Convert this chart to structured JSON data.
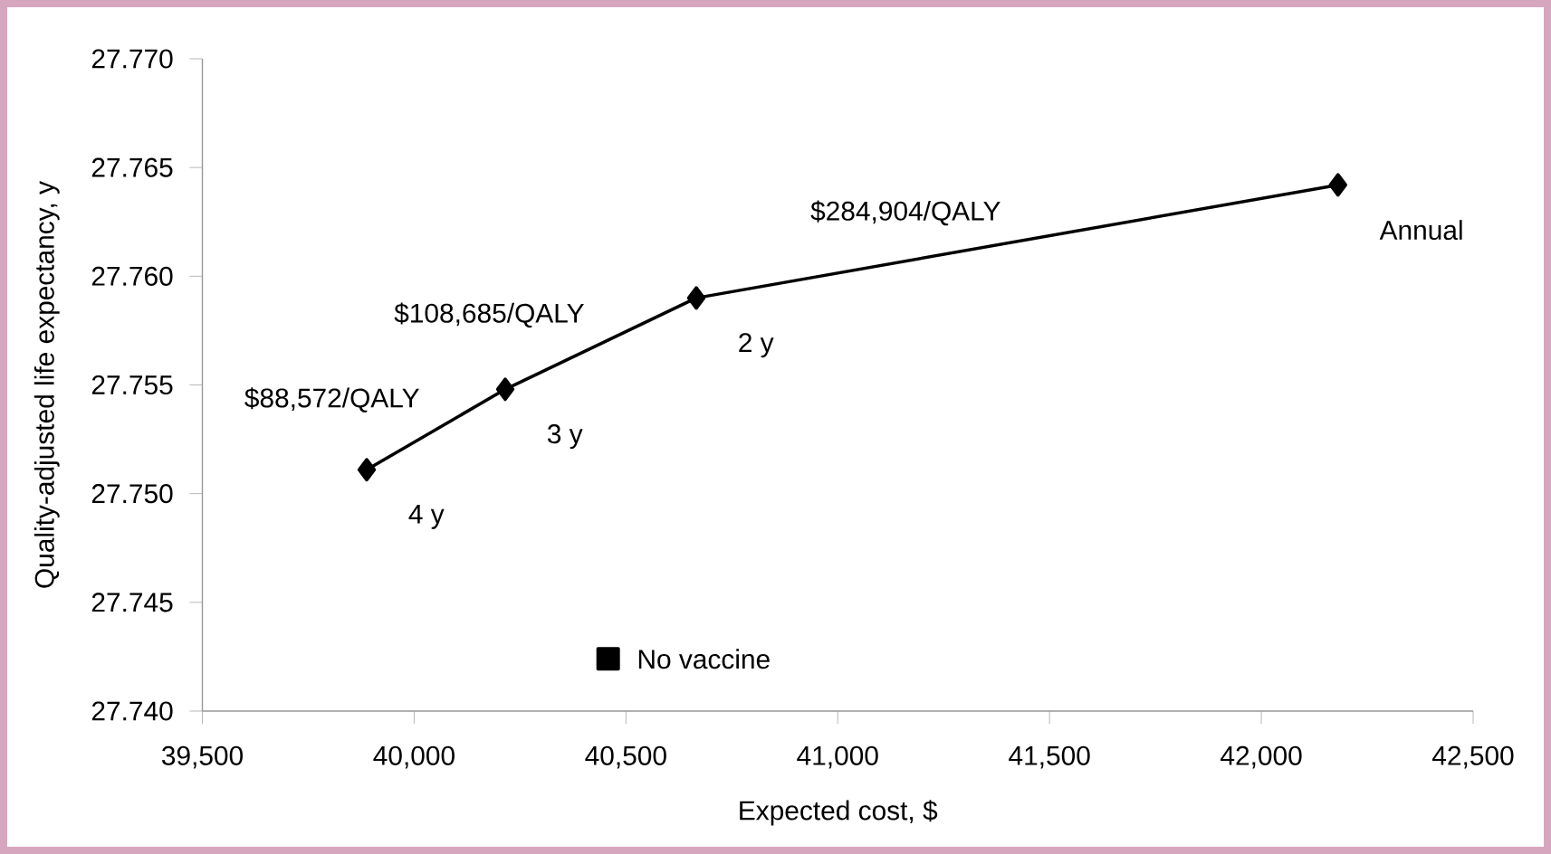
{
  "chart_data": {
    "type": "line",
    "xlabel": "Expected cost, $",
    "ylabel": "Quality-adjusted life expectancy, y",
    "xlim": [
      39500,
      42500
    ],
    "xticks": [
      {
        "value": 39500,
        "label": "39,500"
      },
      {
        "value": 40000,
        "label": "40,000"
      },
      {
        "value": 40500,
        "label": "40,500"
      },
      {
        "value": 41000,
        "label": "41,000"
      },
      {
        "value": 41500,
        "label": "41,500"
      },
      {
        "value": 42000,
        "label": "42,000"
      },
      {
        "value": 42500,
        "label": "42,500"
      }
    ],
    "ylim": [
      27.74,
      27.77
    ],
    "yticks": [
      {
        "value": 27.74,
        "label": "27.740"
      },
      {
        "value": 27.745,
        "label": "27.745"
      },
      {
        "value": 27.75,
        "label": "27.750"
      },
      {
        "value": 27.755,
        "label": "27.755"
      },
      {
        "value": 27.76,
        "label": "27.760"
      },
      {
        "value": 27.765,
        "label": "27.765"
      },
      {
        "value": 27.77,
        "label": "27.770"
      }
    ],
    "series": [
      {
        "marker": "diamond",
        "color": "#000000",
        "x": [
          39888,
          40215,
          40666,
          42181
        ],
        "values": [
          27.7511,
          27.7548,
          27.759,
          27.7642
        ]
      },
      {
        "type": "scatter",
        "marker": "square",
        "name": "No vaccine",
        "color": "#000000",
        "x": [
          40458
        ],
        "values": [
          27.7424
        ]
      }
    ],
    "annotations": [
      {
        "text": "4 y",
        "x": 39888,
        "y": 27.7511
      },
      {
        "text": "3 y",
        "x": 40215,
        "y": 27.7548
      },
      {
        "text": "2 y",
        "x": 40666,
        "y": 27.759
      },
      {
        "text": "Annual",
        "x": 42181,
        "y": 27.7642
      },
      {
        "text": "$88,572/QALY",
        "x": 40051,
        "y": 27.753
      },
      {
        "text": "$108,685/QALY",
        "x": 40440,
        "y": 27.7569
      },
      {
        "text": "$284,904/QALY",
        "x": 41423,
        "y": 27.7616
      }
    ]
  }
}
